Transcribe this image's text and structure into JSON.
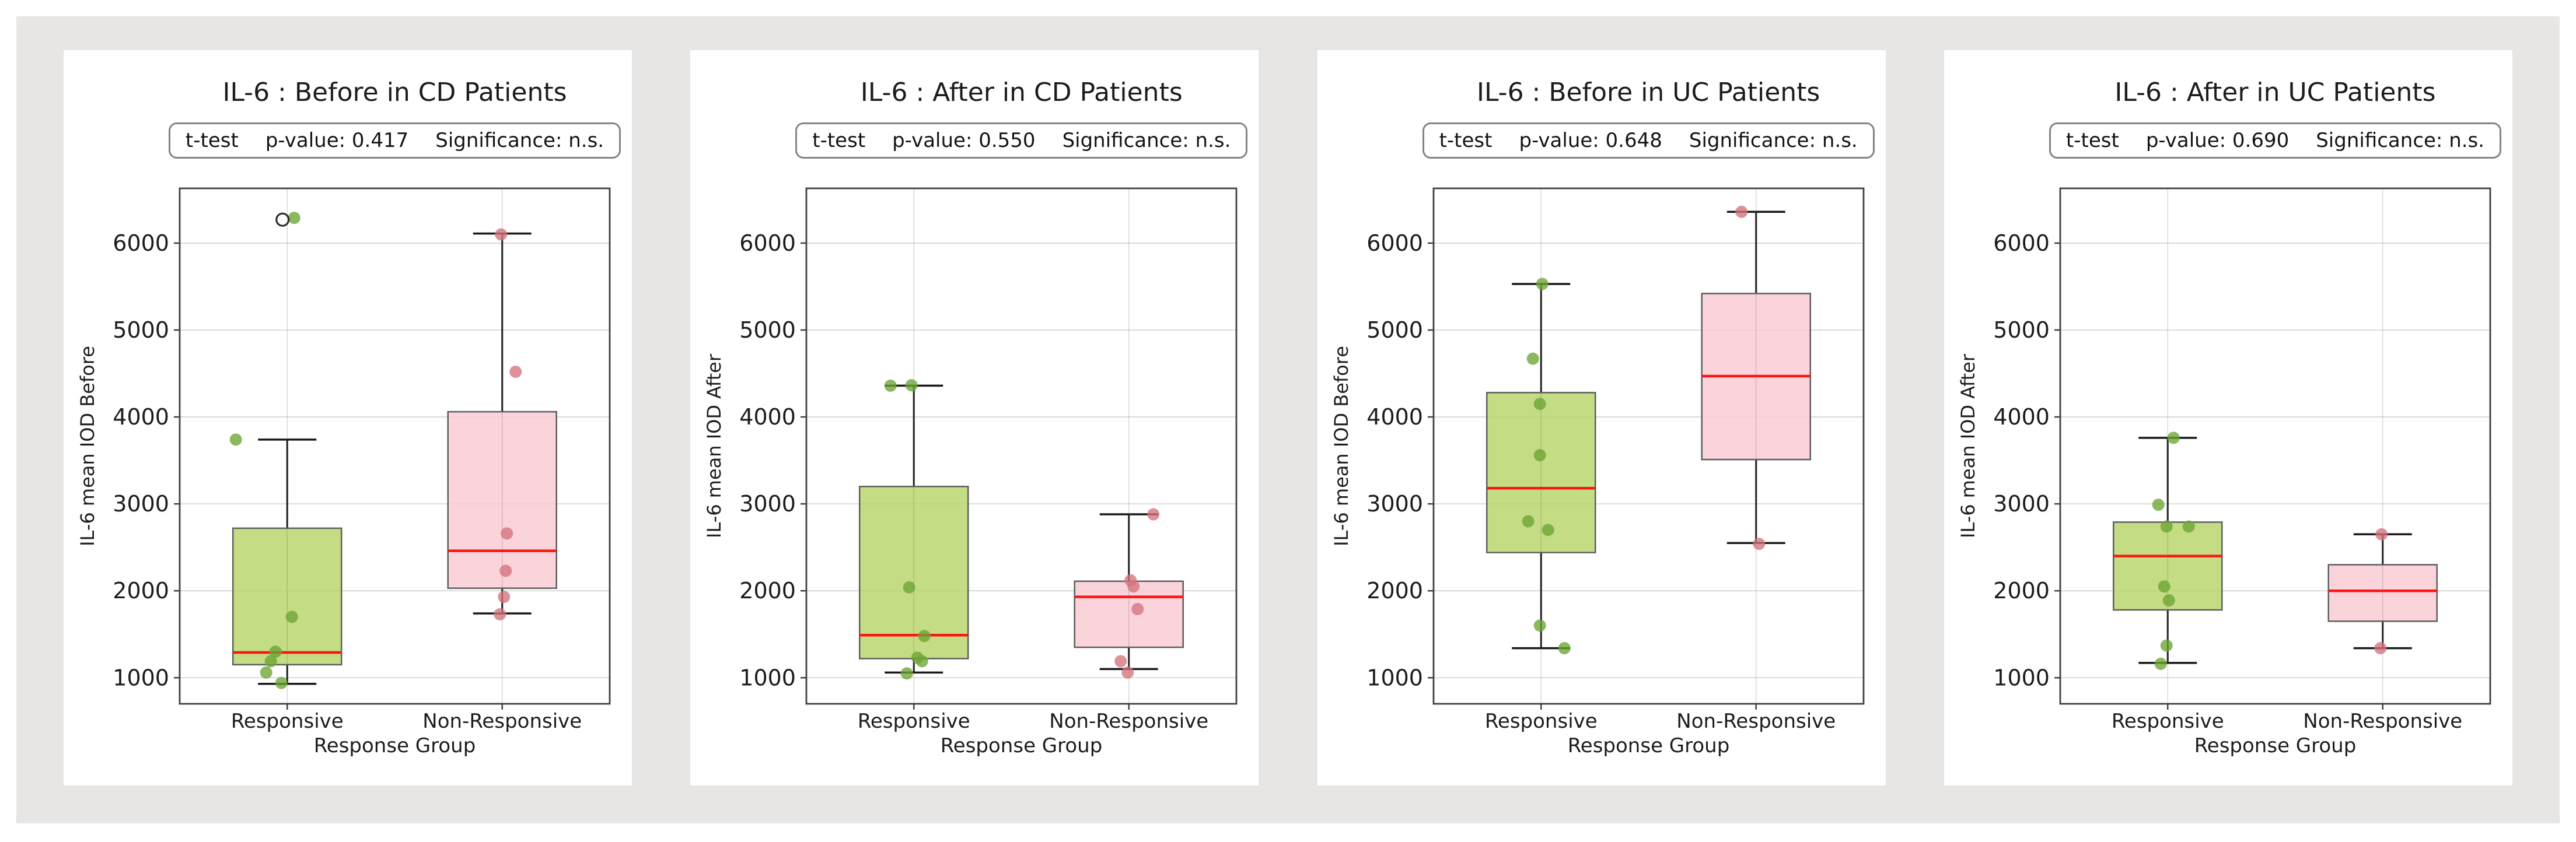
{
  "page": {
    "background": "#ffffff",
    "surface": "#e8e6e5",
    "card_background": "#ffffff"
  },
  "style": {
    "colors": {
      "box_green": "#b7d468",
      "box_pink": "#f9c9d3",
      "box_edge": "#5c5e60",
      "dot_green": "#6ca433",
      "dot_pink": "#d4737e",
      "median_red": "#ff1414",
      "whisker": "#181818",
      "spine": "#3f3f3f",
      "grid": "#d7d7d7",
      "grid_over_box": "rgba(90,90,90,0.22)",
      "text": "#1c1c1c",
      "outlier_ring": "#2e2e2e"
    }
  },
  "chart_data": [
    {
      "type": "box",
      "title": "IL-6 : Before in CD Patients",
      "stats": {
        "test": "t-test",
        "p_value": "p-value: 0.417",
        "significance": "Significance: n.s."
      },
      "xlabel": "Response Group",
      "ylabel": "IL-6 mean IOD Before",
      "categories": [
        "Responsive",
        "Non-Responsive"
      ],
      "ylim": [
        700,
        6630
      ],
      "yticks": [
        1000,
        2000,
        3000,
        4000,
        5000,
        6000
      ],
      "grid": true,
      "legend": "none",
      "groups": [
        {
          "name": "Responsive",
          "whislo": 930,
          "q1": 1150,
          "med": 1290,
          "q3": 2720,
          "whishi": 3740,
          "outliers": [
            {
              "v": 6270,
              "dx": -8
            }
          ],
          "points": [
            {
              "v": 6290,
              "dx": 12
            },
            {
              "v": 3740,
              "dx": -88
            },
            {
              "v": 1700,
              "dx": 8
            },
            {
              "v": 1300,
              "dx": -20
            },
            {
              "v": 1190,
              "dx": -28
            },
            {
              "v": 1060,
              "dx": -36
            },
            {
              "v": 940,
              "dx": -10
            }
          ]
        },
        {
          "name": "Non-Responsive",
          "whislo": 1740,
          "q1": 2030,
          "med": 2460,
          "q3": 4060,
          "whishi": 6110,
          "outliers": [],
          "points": [
            {
              "v": 6100,
              "dx": -2
            },
            {
              "v": 4520,
              "dx": 23
            },
            {
              "v": 2660,
              "dx": 8
            },
            {
              "v": 2230,
              "dx": 6
            },
            {
              "v": 1930,
              "dx": 3
            },
            {
              "v": 1730,
              "dx": -4
            }
          ]
        }
      ]
    },
    {
      "type": "box",
      "title": "IL-6 : After in CD Patients",
      "stats": {
        "test": "t-test",
        "p_value": "p-value: 0.550",
        "significance": "Significance: n.s."
      },
      "xlabel": "Response Group",
      "ylabel": "IL-6 mean IOD After",
      "categories": [
        "Responsive",
        "Non-Responsive"
      ],
      "ylim": [
        700,
        6630
      ],
      "yticks": [
        1000,
        2000,
        3000,
        4000,
        5000,
        6000
      ],
      "grid": true,
      "legend": "none",
      "groups": [
        {
          "name": "Responsive",
          "whislo": 1060,
          "q1": 1220,
          "med": 1490,
          "q3": 3200,
          "whishi": 4360,
          "outliers": [],
          "points": [
            {
              "v": 4360,
              "dx": -40
            },
            {
              "v": 4365,
              "dx": -4
            },
            {
              "v": 2040,
              "dx": -8
            },
            {
              "v": 1480,
              "dx": 18
            },
            {
              "v": 1230,
              "dx": 6
            },
            {
              "v": 1190,
              "dx": 14
            },
            {
              "v": 1050,
              "dx": -12
            }
          ]
        },
        {
          "name": "Non-Responsive",
          "whislo": 1100,
          "q1": 1350,
          "med": 1930,
          "q3": 2110,
          "whishi": 2880,
          "outliers": [],
          "points": [
            {
              "v": 2880,
              "dx": 42
            },
            {
              "v": 2120,
              "dx": 3
            },
            {
              "v": 2050,
              "dx": 8
            },
            {
              "v": 1790,
              "dx": 15
            },
            {
              "v": 1190,
              "dx": -14
            },
            {
              "v": 1060,
              "dx": -2
            }
          ]
        }
      ]
    },
    {
      "type": "box",
      "title": "IL-6 : Before in UC Patients",
      "stats": {
        "test": "t-test",
        "p_value": "p-value: 0.648",
        "significance": "Significance: n.s."
      },
      "xlabel": "Response Group",
      "ylabel": "IL-6 mean IOD Before",
      "categories": [
        "Responsive",
        "Non-Responsive"
      ],
      "ylim": [
        700,
        6630
      ],
      "yticks": [
        1000,
        2000,
        3000,
        4000,
        5000,
        6000
      ],
      "grid": true,
      "legend": "none",
      "groups": [
        {
          "name": "Responsive",
          "whislo": 1340,
          "q1": 2440,
          "med": 3180,
          "q3": 4280,
          "whishi": 5530,
          "outliers": [],
          "points": [
            {
              "v": 5530,
              "dx": 2
            },
            {
              "v": 4670,
              "dx": -14
            },
            {
              "v": 4150,
              "dx": -2
            },
            {
              "v": 3560,
              "dx": -2
            },
            {
              "v": 2800,
              "dx": -22
            },
            {
              "v": 2700,
              "dx": 12
            },
            {
              "v": 1600,
              "dx": -2
            },
            {
              "v": 1340,
              "dx": 40
            }
          ]
        },
        {
          "name": "Non-Responsive",
          "whislo": 2550,
          "q1": 3510,
          "med": 4470,
          "q3": 5420,
          "whishi": 6360,
          "outliers": [],
          "points": [
            {
              "v": 6360,
              "dx": -25
            },
            {
              "v": 2540,
              "dx": 5
            }
          ]
        }
      ]
    },
    {
      "type": "box",
      "title": "IL-6 : After in UC Patients",
      "stats": {
        "test": "t-test",
        "p_value": "p-value: 0.690",
        "significance": "Significance: n.s."
      },
      "xlabel": "Response Group",
      "ylabel": "IL-6 mean IOD After",
      "categories": [
        "Responsive",
        "Non-Responsive"
      ],
      "ylim": [
        700,
        6630
      ],
      "yticks": [
        1000,
        2000,
        3000,
        4000,
        5000,
        6000
      ],
      "grid": true,
      "legend": "none",
      "groups": [
        {
          "name": "Responsive",
          "whislo": 1170,
          "q1": 1780,
          "med": 2400,
          "q3": 2790,
          "whishi": 3760,
          "outliers": [],
          "points": [
            {
              "v": 3760,
              "dx": 10
            },
            {
              "v": 2990,
              "dx": -16
            },
            {
              "v": 2740,
              "dx": -2
            },
            {
              "v": 2740,
              "dx": 36
            },
            {
              "v": 2050,
              "dx": -6
            },
            {
              "v": 1890,
              "dx": 2
            },
            {
              "v": 1370,
              "dx": -2
            },
            {
              "v": 1160,
              "dx": -12
            }
          ]
        },
        {
          "name": "Non-Responsive",
          "whislo": 1340,
          "q1": 1650,
          "med": 2000,
          "q3": 2300,
          "whishi": 2650,
          "outliers": [],
          "points": [
            {
              "v": 2650,
              "dx": -2
            },
            {
              "v": 1340,
              "dx": -4
            }
          ]
        }
      ]
    }
  ]
}
